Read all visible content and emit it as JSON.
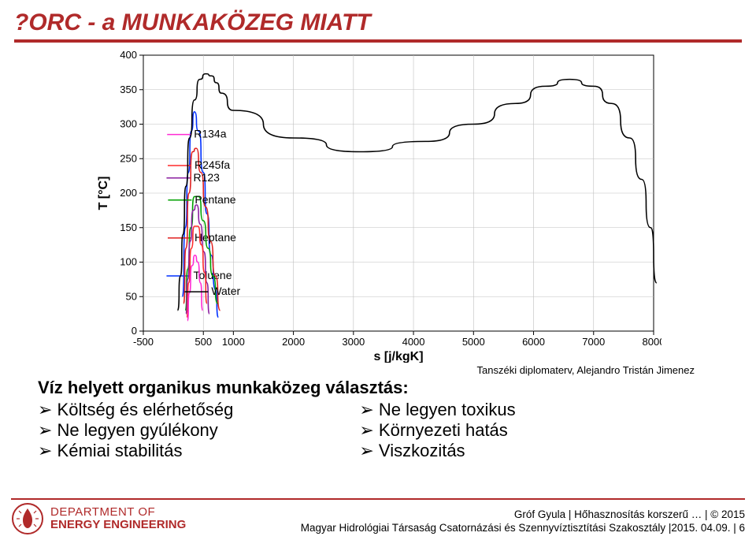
{
  "title": "?ORC - a MUNKAKÖZEG MIATT",
  "attribution": "Tanszéki diplomaterv, Alejandro Tristán Jimenez",
  "chart": {
    "x_label": "s [j/kgK]",
    "y_label": "T [°C]",
    "xlim": [
      -500,
      8000
    ],
    "ylim": [
      0,
      400
    ],
    "xticks": [
      -500,
      500,
      1000,
      2000,
      3000,
      4000,
      5000,
      6000,
      7000,
      8000
    ],
    "yticks": [
      0,
      50,
      100,
      150,
      200,
      250,
      300,
      350,
      400
    ],
    "grid_color": "#bfbfbf",
    "axis_color": "#000000",
    "background": "#ffffff",
    "series": [
      {
        "name": "Toluene",
        "color": "#0030ff",
        "label_x": 280,
        "label_y": 80,
        "points": [
          [
            150,
            50
          ],
          [
            200,
            150
          ],
          [
            250,
            230
          ],
          [
            300,
            290
          ],
          [
            350,
            318
          ],
          [
            420,
            290
          ],
          [
            500,
            230
          ],
          [
            560,
            170
          ],
          [
            630,
            110
          ],
          [
            700,
            60
          ],
          [
            750,
            20
          ]
        ]
      },
      {
        "name": "Heptane",
        "color": "#e02020",
        "label_x": 300,
        "label_y": 135,
        "points": [
          [
            170,
            40
          ],
          [
            210,
            120
          ],
          [
            260,
            200
          ],
          [
            320,
            260
          ],
          [
            380,
            265
          ],
          [
            460,
            230
          ],
          [
            540,
            180
          ],
          [
            620,
            130
          ],
          [
            700,
            80
          ],
          [
            780,
            30
          ]
        ]
      },
      {
        "name": "Pentane",
        "color": "#00a000",
        "label_x": 305,
        "label_y": 190,
        "points": [
          [
            200,
            30
          ],
          [
            240,
            90
          ],
          [
            290,
            150
          ],
          [
            350,
            195
          ],
          [
            420,
            195
          ],
          [
            500,
            160
          ],
          [
            580,
            120
          ],
          [
            660,
            80
          ],
          [
            740,
            40
          ]
        ]
      },
      {
        "name": "R123",
        "color": "#8a1ea0",
        "label_x": 280,
        "label_y": 222,
        "points": [
          [
            210,
            25
          ],
          [
            240,
            75
          ],
          [
            280,
            130
          ],
          [
            330,
            175
          ],
          [
            390,
            183
          ],
          [
            450,
            155
          ],
          [
            510,
            115
          ],
          [
            560,
            70
          ],
          [
            600,
            25
          ]
        ]
      },
      {
        "name": "R245fa",
        "color": "#ff2a2a",
        "label_x": 300,
        "label_y": 240,
        "points": [
          [
            225,
            20
          ],
          [
            255,
            70
          ],
          [
            300,
            120
          ],
          [
            350,
            152
          ],
          [
            410,
            152
          ],
          [
            470,
            125
          ],
          [
            520,
            85
          ],
          [
            560,
            40
          ]
        ]
      },
      {
        "name": "R134a",
        "color": "#ff2ad4",
        "label_x": 290,
        "label_y": 285,
        "points": [
          [
            235,
            15
          ],
          [
            265,
            55
          ],
          [
            310,
            95
          ],
          [
            360,
            110
          ],
          [
            410,
            100
          ],
          [
            450,
            70
          ],
          [
            490,
            30
          ]
        ]
      },
      {
        "name": "Water",
        "color": "#000000",
        "label_x": 580,
        "label_y": 57,
        "points": [
          [
            70,
            30
          ],
          [
            120,
            80
          ],
          [
            160,
            140
          ],
          [
            210,
            210
          ],
          [
            270,
            280
          ],
          [
            350,
            335
          ],
          [
            440,
            365
          ],
          [
            540,
            373
          ],
          [
            640,
            370
          ],
          [
            720,
            360
          ],
          [
            800,
            345
          ],
          [
            1000,
            320
          ],
          [
            2000,
            280
          ],
          [
            3100,
            260
          ],
          [
            4200,
            275
          ],
          [
            5000,
            300
          ],
          [
            5700,
            330
          ],
          [
            6200,
            355
          ],
          [
            6600,
            365
          ],
          [
            7000,
            355
          ],
          [
            7300,
            330
          ],
          [
            7600,
            280
          ],
          [
            7800,
            220
          ],
          [
            7950,
            150
          ],
          [
            8050,
            70
          ]
        ]
      }
    ]
  },
  "content": {
    "heading": "Víz helyett organikus munkaközeg választás:",
    "left": [
      "Költség és elérhetőség",
      "Ne legyen gyúlékony",
      "Kémiai stabilitás"
    ],
    "right": [
      "Ne legyen toxikus",
      "Környezeti hatás",
      "Viszkozitás"
    ]
  },
  "footer": {
    "dept1": "DEPARTMENT OF",
    "dept2": "ENERGY ENGINEERING",
    "line1": "Gróf Gyula | Hőhasznosítás korszerű … | © 2015",
    "line2": "Magyar Hidrológiai Társaság Csatornázási és Szennyvíztisztítási Szakosztály |2015. 04.09. | 6"
  },
  "colors": {
    "brand": "#b02a2a"
  }
}
